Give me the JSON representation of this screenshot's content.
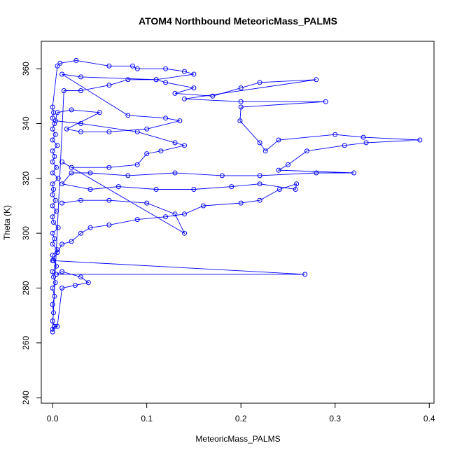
{
  "chart_data": {
    "type": "scatter",
    "title": "ATOM4 Northbound MeteoricMass_PALMS",
    "xlabel": "MeteoricMass_PALMS",
    "ylabel": "Theta (K)",
    "xlim": [
      -0.012,
      0.405
    ],
    "ylim": [
      238,
      370
    ],
    "x_ticks": [
      0.0,
      0.1,
      0.2,
      0.3,
      0.4
    ],
    "x_tick_labels": [
      "0.0",
      "0.1",
      "0.2",
      "0.3",
      "0.4"
    ],
    "y_ticks": [
      240,
      260,
      280,
      300,
      320,
      340,
      360
    ],
    "y_tick_labels": [
      "240",
      "260",
      "280",
      "300",
      "320",
      "340",
      "360"
    ],
    "grid": false,
    "marker": "open-circle",
    "connected_lines": true,
    "series": [
      {
        "points": [
          [
            0.0,
            264
          ],
          [
            0.002,
            266
          ],
          [
            0.0,
            268
          ],
          [
            0.001,
            271
          ],
          [
            0.0,
            274
          ],
          [
            0.002,
            277
          ],
          [
            0.0,
            280
          ],
          [
            0.003,
            282
          ],
          [
            0.001,
            284
          ],
          [
            0.0,
            286
          ],
          [
            0.004,
            288
          ],
          [
            0.001,
            290
          ],
          [
            0.0,
            292
          ],
          [
            0.005,
            294
          ],
          [
            0.0,
            296
          ],
          [
            0.002,
            298
          ],
          [
            0.0,
            300
          ],
          [
            0.006,
            302
          ],
          [
            0.001,
            304
          ],
          [
            0.0,
            306
          ],
          [
            0.004,
            308
          ],
          [
            0.0,
            310
          ],
          [
            0.003,
            312
          ],
          [
            0.0,
            314
          ],
          [
            0.001,
            316
          ],
          [
            0.0,
            318
          ],
          [
            0.006,
            320
          ],
          [
            0.0,
            322
          ],
          [
            0.004,
            324
          ],
          [
            0.0,
            326
          ],
          [
            0.002,
            328
          ],
          [
            0.0,
            330
          ],
          [
            0.005,
            332
          ],
          [
            0.0,
            334
          ],
          [
            0.003,
            336
          ],
          [
            0.0,
            338
          ],
          [
            0.002,
            340
          ],
          [
            0.0,
            342
          ],
          [
            0.001,
            344
          ],
          [
            0.0,
            346
          ],
          [
            0.005,
            361
          ],
          [
            0.008,
            362
          ],
          [
            0.025,
            363
          ],
          [
            0.06,
            361
          ],
          [
            0.085,
            361
          ],
          [
            0.09,
            360
          ],
          [
            0.12,
            360
          ],
          [
            0.14,
            359
          ],
          [
            0.15,
            358
          ],
          [
            0.11,
            356
          ],
          [
            0.12,
            355
          ],
          [
            0.15,
            353
          ],
          [
            0.13,
            351
          ],
          [
            0.17,
            350
          ],
          [
            0.2,
            353
          ],
          [
            0.22,
            355
          ],
          [
            0.28,
            356
          ],
          [
            0.14,
            349
          ],
          [
            0.2,
            348
          ],
          [
            0.29,
            348
          ],
          [
            0.2,
            346
          ],
          [
            0.199,
            341
          ],
          [
            0.22,
            333
          ],
          [
            0.226,
            330
          ],
          [
            0.24,
            334
          ],
          [
            0.3,
            336
          ],
          [
            0.33,
            335
          ],
          [
            0.39,
            334
          ],
          [
            0.333,
            333
          ],
          [
            0.31,
            332
          ],
          [
            0.27,
            330
          ],
          [
            0.25,
            325
          ],
          [
            0.24,
            323
          ],
          [
            0.32,
            322
          ],
          [
            0.28,
            322
          ],
          [
            0.22,
            321
          ],
          [
            0.18,
            321
          ],
          [
            0.13,
            322
          ],
          [
            0.08,
            321
          ],
          [
            0.04,
            322
          ],
          [
            0.02,
            322
          ],
          [
            0.01,
            318
          ],
          [
            0.04,
            316
          ],
          [
            0.07,
            317
          ],
          [
            0.11,
            316
          ],
          [
            0.15,
            316
          ],
          [
            0.19,
            317
          ],
          [
            0.22,
            318
          ],
          [
            0.258,
            316
          ],
          [
            0.259,
            318
          ],
          [
            0.241,
            316
          ],
          [
            0.22,
            312
          ],
          [
            0.2,
            311
          ],
          [
            0.16,
            310
          ],
          [
            0.14,
            307
          ],
          [
            0.12,
            306
          ],
          [
            0.09,
            305
          ],
          [
            0.06,
            303
          ],
          [
            0.04,
            302
          ],
          [
            0.03,
            300
          ],
          [
            0.02,
            297
          ],
          [
            0.01,
            296
          ],
          [
            0.005,
            293
          ],
          [
            0.0,
            290
          ],
          [
            0.268,
            285
          ],
          [
            0.004,
            285
          ],
          [
            0.01,
            286
          ],
          [
            0.03,
            284
          ],
          [
            0.038,
            282
          ],
          [
            0.024,
            281
          ],
          [
            0.01,
            280
          ],
          [
            0.005,
            266
          ],
          [
            0.002,
            266
          ],
          [
            0.0,
            265
          ],
          [
            0.012,
            352
          ],
          [
            0.03,
            352
          ],
          [
            0.06,
            354
          ],
          [
            0.08,
            356
          ],
          [
            0.11,
            356
          ],
          [
            0.03,
            357
          ],
          [
            0.01,
            358
          ],
          [
            0.08,
            343
          ],
          [
            0.12,
            342
          ],
          [
            0.135,
            341
          ],
          [
            0.1,
            338
          ],
          [
            0.06,
            337
          ],
          [
            0.03,
            337
          ],
          [
            0.015,
            338
          ],
          [
            0.05,
            344
          ],
          [
            0.02,
            345
          ],
          [
            0.005,
            344
          ],
          [
            0.003,
            341
          ],
          [
            0.03,
            340
          ],
          [
            0.09,
            337
          ],
          [
            0.13,
            333
          ],
          [
            0.14,
            332
          ],
          [
            0.115,
            330
          ],
          [
            0.1,
            329
          ],
          [
            0.09,
            325
          ],
          [
            0.06,
            324
          ],
          [
            0.02,
            324
          ],
          [
            0.01,
            326
          ],
          [
            0.14,
            300
          ],
          [
            0.13,
            307
          ],
          [
            0.1,
            311
          ],
          [
            0.06,
            312
          ],
          [
            0.03,
            312
          ],
          [
            0.01,
            311
          ]
        ]
      }
    ]
  }
}
